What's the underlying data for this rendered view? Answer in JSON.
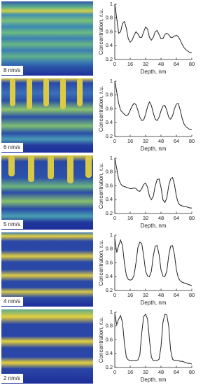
{
  "chart_data": [
    {
      "type": "line",
      "annotation": "8 nm/s",
      "x_label": "Depth, nm",
      "y_label": "Concentration, r.u.",
      "color": "#222222",
      "x": [
        0,
        2,
        4,
        6,
        8,
        10,
        12,
        14,
        16,
        18,
        20,
        22,
        24,
        26,
        28,
        30,
        32,
        34,
        36,
        38,
        40,
        42,
        44,
        46,
        48,
        50,
        52,
        54,
        56,
        58,
        60,
        62,
        64,
        66,
        68,
        70,
        72,
        74,
        76,
        78,
        80
      ],
      "values": [
        1.0,
        0.8,
        0.58,
        0.6,
        0.72,
        0.75,
        0.65,
        0.5,
        0.45,
        0.48,
        0.55,
        0.6,
        0.57,
        0.52,
        0.52,
        0.6,
        0.67,
        0.64,
        0.52,
        0.48,
        0.52,
        0.6,
        0.62,
        0.56,
        0.5,
        0.5,
        0.56,
        0.58,
        0.56,
        0.52,
        0.52,
        0.54,
        0.55,
        0.53,
        0.48,
        0.42,
        0.37,
        0.34,
        0.32,
        0.3,
        0.3
      ],
      "xlim": [
        0,
        80
      ],
      "ylim": [
        0.2,
        1
      ],
      "xticks": [
        0,
        16,
        32,
        48,
        64,
        80
      ],
      "yticks": [
        0.2,
        0.4,
        0.6,
        0.8,
        1
      ]
    },
    {
      "type": "line",
      "annotation": "6 nm/s",
      "x_label": "Depth, nm",
      "y_label": "Concentration, r.u.",
      "color": "#222222",
      "x": [
        0,
        2,
        4,
        6,
        8,
        10,
        12,
        14,
        16,
        18,
        20,
        22,
        24,
        26,
        28,
        30,
        32,
        34,
        36,
        38,
        40,
        42,
        44,
        46,
        48,
        50,
        52,
        54,
        56,
        58,
        60,
        62,
        64,
        66,
        68,
        70,
        72,
        74,
        76,
        78,
        80
      ],
      "values": [
        1.0,
        0.85,
        0.68,
        0.58,
        0.55,
        0.52,
        0.5,
        0.52,
        0.58,
        0.64,
        0.68,
        0.66,
        0.58,
        0.48,
        0.43,
        0.44,
        0.52,
        0.63,
        0.7,
        0.65,
        0.54,
        0.45,
        0.43,
        0.48,
        0.57,
        0.64,
        0.65,
        0.58,
        0.48,
        0.45,
        0.5,
        0.6,
        0.67,
        0.68,
        0.58,
        0.46,
        0.38,
        0.34,
        0.32,
        0.3,
        0.3
      ],
      "xlim": [
        0,
        80
      ],
      "ylim": [
        0.2,
        1
      ],
      "xticks": [
        0,
        16,
        32,
        48,
        64,
        80
      ],
      "yticks": [
        0.2,
        0.4,
        0.6,
        0.8,
        1
      ]
    },
    {
      "type": "line",
      "annotation": "5 nm/s",
      "x_label": "Depth, nm",
      "y_label": "Concentration, r.u.",
      "color": "#222222",
      "x": [
        0,
        2,
        4,
        6,
        8,
        10,
        12,
        14,
        16,
        18,
        20,
        22,
        24,
        26,
        28,
        30,
        32,
        34,
        36,
        38,
        40,
        42,
        44,
        46,
        48,
        50,
        52,
        54,
        56,
        58,
        60,
        62,
        64,
        66,
        68,
        70,
        72,
        74,
        76,
        78,
        80
      ],
      "values": [
        1.0,
        0.85,
        0.7,
        0.63,
        0.6,
        0.59,
        0.58,
        0.57,
        0.56,
        0.56,
        0.57,
        0.56,
        0.53,
        0.52,
        0.56,
        0.62,
        0.64,
        0.58,
        0.45,
        0.4,
        0.45,
        0.6,
        0.69,
        0.7,
        0.58,
        0.4,
        0.36,
        0.42,
        0.6,
        0.7,
        0.72,
        0.62,
        0.45,
        0.35,
        0.32,
        0.31,
        0.3,
        0.3,
        0.29,
        0.28,
        0.28
      ],
      "xlim": [
        0,
        80
      ],
      "ylim": [
        0.2,
        1
      ],
      "xticks": [
        0,
        16,
        32,
        48,
        64,
        80
      ],
      "yticks": [
        0.2,
        0.4,
        0.6,
        0.8,
        1
      ]
    },
    {
      "type": "line",
      "annotation": "4 nm/s",
      "x_label": "Depth, nm",
      "y_label": "Concentration, r.u.",
      "color": "#222222",
      "x": [
        0,
        2,
        4,
        6,
        8,
        10,
        12,
        14,
        16,
        18,
        20,
        22,
        24,
        26,
        28,
        30,
        32,
        34,
        36,
        38,
        40,
        42,
        44,
        46,
        48,
        50,
        52,
        54,
        56,
        58,
        60,
        62,
        64,
        66,
        68,
        70,
        72,
        74,
        76,
        78,
        80
      ],
      "values": [
        0.95,
        0.75,
        0.85,
        0.93,
        0.85,
        0.6,
        0.42,
        0.36,
        0.35,
        0.36,
        0.42,
        0.6,
        0.82,
        0.9,
        0.88,
        0.7,
        0.48,
        0.41,
        0.4,
        0.48,
        0.7,
        0.84,
        0.85,
        0.72,
        0.5,
        0.41,
        0.4,
        0.48,
        0.7,
        0.84,
        0.85,
        0.72,
        0.5,
        0.38,
        0.34,
        0.32,
        0.31,
        0.3,
        0.29,
        0.28,
        0.27
      ],
      "xlim": [
        0,
        80
      ],
      "ylim": [
        0.2,
        1
      ],
      "xticks": [
        0,
        16,
        32,
        48,
        64,
        80
      ],
      "yticks": [
        0.2,
        0.4,
        0.6,
        0.8,
        1
      ]
    },
    {
      "type": "line",
      "annotation": "2 nm/s",
      "x_label": "Depth, nm",
      "y_label": "Concentration, r.u.",
      "color": "#222222",
      "x": [
        0,
        2,
        4,
        6,
        8,
        10,
        12,
        14,
        16,
        18,
        20,
        22,
        24,
        26,
        28,
        30,
        32,
        34,
        36,
        38,
        40,
        42,
        44,
        46,
        48,
        50,
        52,
        54,
        56,
        58,
        60,
        62,
        64,
        66,
        68,
        70,
        72,
        74,
        76,
        78,
        80
      ],
      "values": [
        0.98,
        0.82,
        0.9,
        0.95,
        0.85,
        0.55,
        0.35,
        0.31,
        0.3,
        0.3,
        0.3,
        0.3,
        0.31,
        0.38,
        0.7,
        0.94,
        0.97,
        0.9,
        0.6,
        0.35,
        0.3,
        0.3,
        0.3,
        0.32,
        0.5,
        0.85,
        0.97,
        0.96,
        0.8,
        0.45,
        0.32,
        0.3,
        0.3,
        0.3,
        0.29,
        0.29,
        0.28,
        0.27,
        0.26,
        0.26,
        0.25
      ],
      "xlim": [
        0,
        80
      ],
      "ylim": [
        0.2,
        1
      ],
      "xticks": [
        0,
        16,
        32,
        48,
        64,
        80
      ],
      "yticks": [
        0.2,
        0.4,
        0.6,
        0.8,
        1
      ]
    }
  ]
}
